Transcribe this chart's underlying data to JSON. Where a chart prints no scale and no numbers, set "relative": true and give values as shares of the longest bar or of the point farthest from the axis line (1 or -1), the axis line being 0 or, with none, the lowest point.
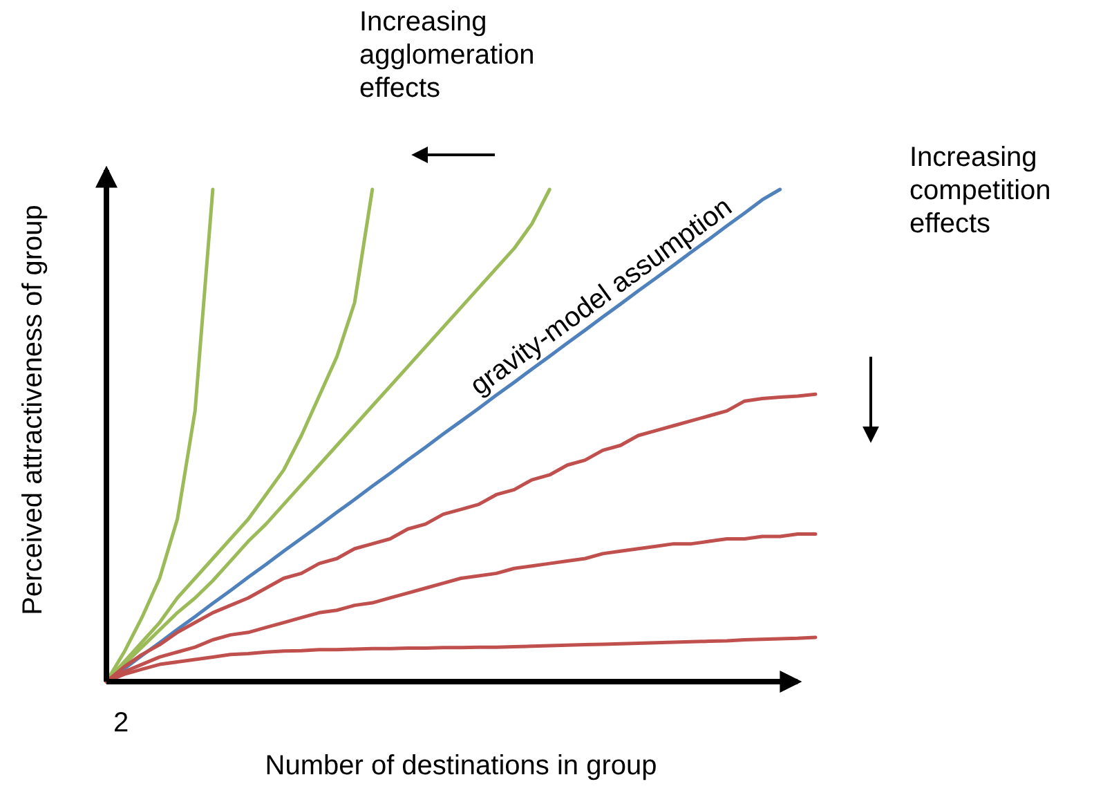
{
  "chart_data": {
    "type": "line",
    "relative": true,
    "xlabel": "Number of destinations in group",
    "ylabel": "Perceived attractiveness of group",
    "line_style": "solid",
    "categories": [
      null,
      null,
      null,
      null,
      null,
      null,
      null,
      null,
      null,
      null,
      null,
      null,
      null,
      null,
      null,
      null,
      null,
      null,
      null,
      null,
      null,
      null,
      null,
      null,
      null,
      null,
      null,
      null,
      null,
      null,
      null,
      null,
      null,
      null,
      null,
      null,
      null,
      null,
      null,
      null,
      null
    ],
    "series": [
      {
        "color": "#9bbb59",
        "values": [
          0,
          0.06,
          0.13,
          0.21,
          0.33,
          0.55,
          1,
          null,
          null,
          null,
          null,
          null,
          null,
          null,
          null,
          null,
          null,
          null,
          null,
          null,
          null,
          null,
          null,
          null,
          null,
          null,
          null,
          null,
          null,
          null,
          null,
          null,
          null,
          null,
          null,
          null,
          null,
          null,
          null,
          null,
          null
        ]
      },
      {
        "color": "#9bbb59",
        "values": [
          0,
          0.04,
          0.08,
          0.12,
          0.17,
          0.21,
          0.25,
          0.29,
          0.33,
          0.38,
          0.43,
          0.5,
          0.58,
          0.66,
          0.77,
          1,
          null,
          null,
          null,
          null,
          null,
          null,
          null,
          null,
          null,
          null,
          null,
          null,
          null,
          null,
          null,
          null,
          null,
          null,
          null,
          null,
          null,
          null,
          null,
          null,
          null
        ]
      },
      {
        "color": "#9bbb59",
        "values": [
          0,
          0.035,
          0.07,
          0.105,
          0.14,
          0.17,
          0.205,
          0.245,
          0.285,
          0.32,
          0.36,
          0.4,
          0.44,
          0.48,
          0.52,
          0.56,
          0.6,
          0.64,
          0.68,
          0.72,
          0.76,
          0.8,
          0.84,
          0.88,
          0.93,
          1,
          null,
          null,
          null,
          null,
          null,
          null,
          null,
          null,
          null,
          null,
          null,
          null,
          null,
          null,
          null
        ]
      },
      {
        "name": "gravity-model assumption",
        "color": "#4f81bd",
        "values": [
          0,
          0.026,
          0.053,
          0.079,
          0.106,
          0.132,
          0.159,
          0.185,
          0.212,
          0.238,
          0.265,
          0.291,
          0.317,
          0.344,
          0.37,
          0.397,
          0.423,
          0.45,
          0.476,
          0.503,
          0.529,
          0.555,
          0.582,
          0.608,
          0.635,
          0.661,
          0.688,
          0.714,
          0.741,
          0.767,
          0.794,
          0.82,
          0.846,
          0.873,
          0.899,
          0.926,
          0.952,
          0.979,
          1,
          null,
          null
        ]
      },
      {
        "color": "#c0504d",
        "values": [
          0,
          0.03,
          0.055,
          0.075,
          0.1,
          0.12,
          0.14,
          0.155,
          0.17,
          0.19,
          0.21,
          0.22,
          0.24,
          0.25,
          0.27,
          0.28,
          0.29,
          0.31,
          0.32,
          0.34,
          0.35,
          0.36,
          0.38,
          0.39,
          0.41,
          0.42,
          0.44,
          0.45,
          0.47,
          0.48,
          0.5,
          0.51,
          0.52,
          0.53,
          0.54,
          0.55,
          0.57,
          0.575,
          0.578,
          0.58,
          0.584
        ]
      },
      {
        "color": "#c0504d",
        "values": [
          0,
          0.02,
          0.035,
          0.05,
          0.06,
          0.07,
          0.085,
          0.095,
          0.1,
          0.11,
          0.12,
          0.13,
          0.14,
          0.145,
          0.155,
          0.16,
          0.17,
          0.18,
          0.19,
          0.2,
          0.21,
          0.215,
          0.22,
          0.23,
          0.235,
          0.24,
          0.245,
          0.25,
          0.26,
          0.265,
          0.27,
          0.275,
          0.28,
          0.28,
          0.285,
          0.29,
          0.29,
          0.295,
          0.295,
          0.3,
          0.3
        ]
      },
      {
        "color": "#c0504d",
        "values": [
          0,
          0.015,
          0.025,
          0.035,
          0.04,
          0.045,
          0.05,
          0.055,
          0.057,
          0.06,
          0.062,
          0.063,
          0.065,
          0.065,
          0.066,
          0.067,
          0.067,
          0.068,
          0.068,
          0.069,
          0.069,
          0.07,
          0.07,
          0.071,
          0.072,
          0.073,
          0.074,
          0.075,
          0.076,
          0.077,
          0.078,
          0.079,
          0.08,
          0.081,
          0.082,
          0.083,
          0.085,
          0.086,
          0.087,
          0.088,
          0.09
        ]
      }
    ],
    "annotations": [
      "Increasing\nagglomeration\neffects",
      "Increasing\ncompetition\neffects",
      "2"
    ]
  }
}
